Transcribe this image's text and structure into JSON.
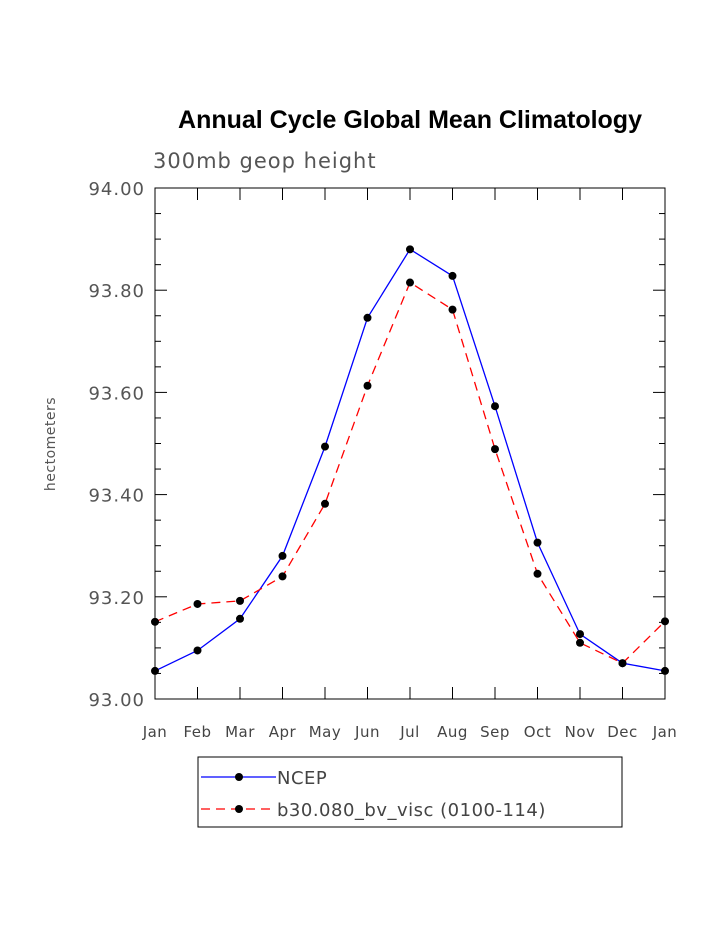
{
  "chart_data": {
    "type": "line",
    "title": "Annual Cycle Global Mean Climatology",
    "subtitle": "300mb geop height",
    "xlabel": "",
    "ylabel": "hectometers",
    "categories": [
      "Jan",
      "Feb",
      "Mar",
      "Apr",
      "May",
      "Jun",
      "Jul",
      "Aug",
      "Sep",
      "Oct",
      "Nov",
      "Dec",
      "Jan"
    ],
    "ylim": [
      93.0,
      94.0
    ],
    "yticks": [
      "93.00",
      "93.20",
      "93.40",
      "93.60",
      "93.80",
      "94.00"
    ],
    "ytick_values": [
      93.0,
      93.2,
      93.4,
      93.6,
      93.8,
      94.0
    ],
    "grid": false,
    "legend_position": "bottom",
    "series": [
      {
        "name": "NCEP",
        "color": "#0000ff",
        "style": "solid",
        "marker": "filled-circle",
        "values": [
          93.055,
          93.095,
          93.157,
          93.28,
          93.494,
          93.746,
          93.88,
          93.828,
          93.573,
          93.306,
          93.127,
          93.07,
          93.055
        ]
      },
      {
        "name": "b30.080_bv_visc (0100-114)",
        "color": "#ff0000",
        "style": "dashed",
        "marker": "filled-circle",
        "values": [
          93.151,
          93.186,
          93.192,
          93.24,
          93.382,
          93.613,
          93.815,
          93.762,
          93.489,
          93.245,
          93.11,
          93.07,
          93.152
        ]
      }
    ]
  }
}
